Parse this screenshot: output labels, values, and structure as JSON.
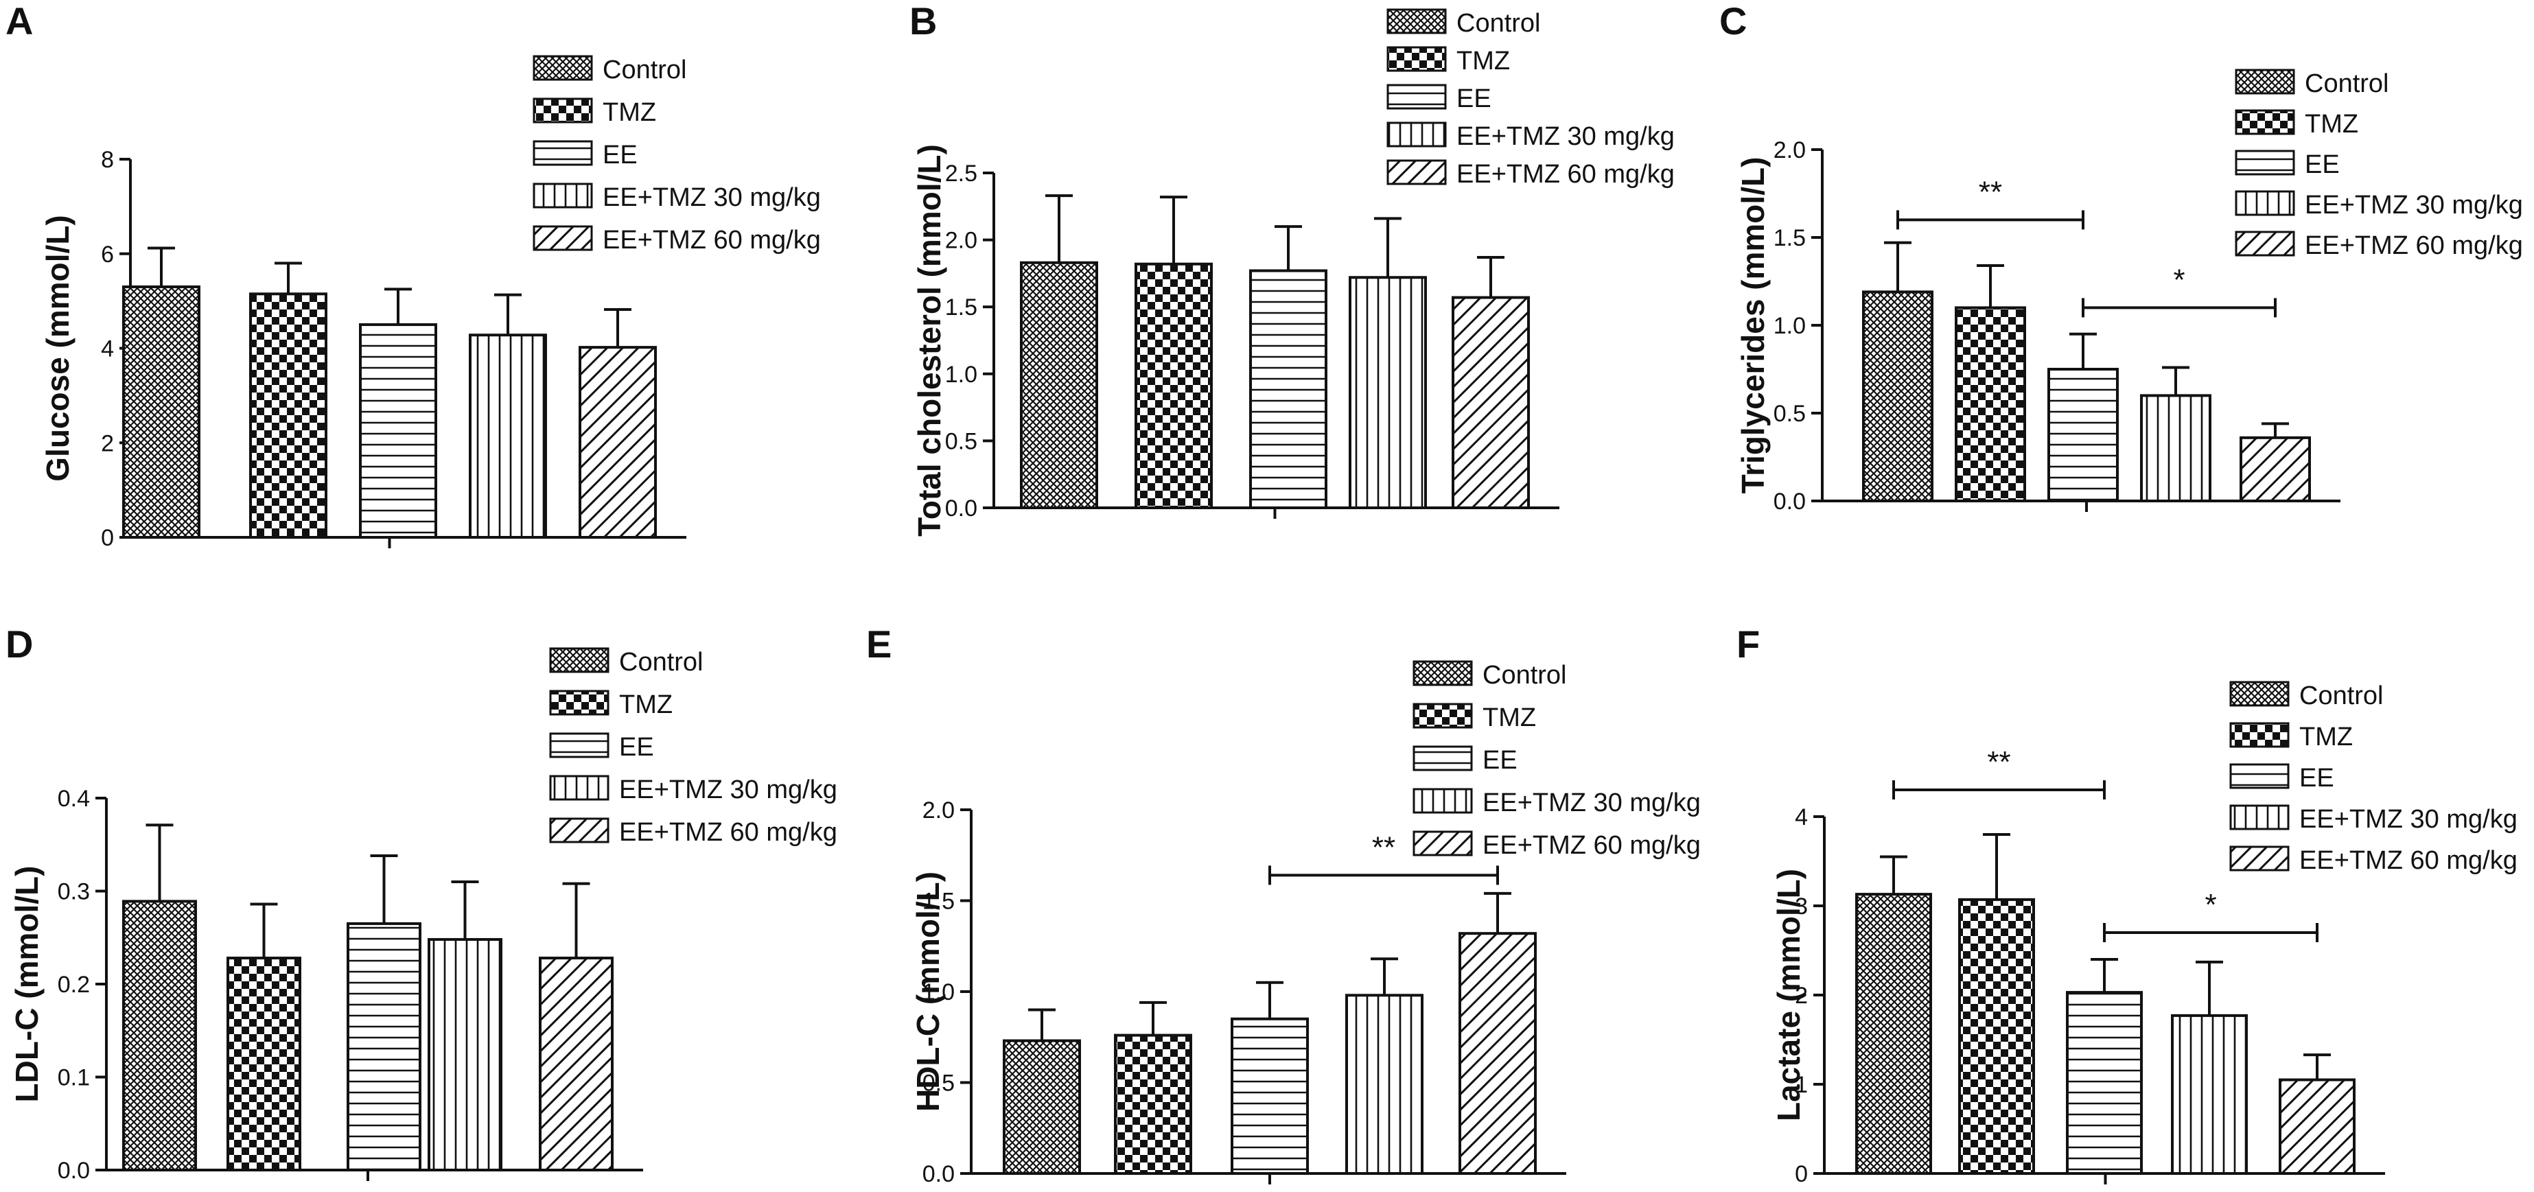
{
  "colors": {
    "ink": "#111111",
    "background": "#ffffff"
  },
  "legend": {
    "entries": [
      "Control",
      "TMZ",
      "EE",
      "EE+TMZ 30 mg/kg",
      "EE+TMZ 60 mg/kg"
    ],
    "patterns": [
      "fine-crosshatch",
      "checker",
      "horizontal-lines",
      "vertical-lines",
      "diagonal-lines"
    ]
  },
  "chart_data": [
    {
      "panel": "A",
      "type": "bar",
      "title": "",
      "xlabel": "",
      "ylabel": "Glucose (mmol/L)",
      "categories": [
        "Control",
        "TMZ",
        "EE",
        "EE+TMZ 30 mg/kg",
        "EE+TMZ 60 mg/kg"
      ],
      "values": [
        5.3,
        5.15,
        4.5,
        4.28,
        4.02
      ],
      "errors": [
        0.82,
        0.65,
        0.75,
        0.85,
        0.8
      ],
      "ylim": [
        0,
        8
      ],
      "ticks": [
        0,
        2,
        4,
        6,
        8
      ],
      "tick_labels": [
        "0",
        "2",
        "4",
        "6",
        "8"
      ],
      "significance": [],
      "legend_position": "top-right"
    },
    {
      "panel": "B",
      "type": "bar",
      "title": "",
      "xlabel": "",
      "ylabel": "Total cholesterol (mmol/L)",
      "categories": [
        "Control",
        "TMZ",
        "EE",
        "EE+TMZ 30 mg/kg",
        "EE+TMZ 60 mg/kg"
      ],
      "values": [
        1.83,
        1.82,
        1.77,
        1.72,
        1.57
      ],
      "errors": [
        0.5,
        0.5,
        0.33,
        0.44,
        0.3
      ],
      "ylim": [
        0,
        2.5
      ],
      "ticks": [
        0,
        0.5,
        1,
        1.5,
        2,
        2.5
      ],
      "tick_labels": [
        "0.0",
        "0.5",
        "1.0",
        "1.5",
        "2.0",
        "2.5"
      ],
      "significance": [],
      "legend_position": "top-right"
    },
    {
      "panel": "C",
      "type": "bar",
      "title": "",
      "xlabel": "",
      "ylabel": "Triglycerides (mmol/L)",
      "categories": [
        "Control",
        "TMZ",
        "EE",
        "EE+TMZ 30 mg/kg",
        "EE+TMZ 60 mg/kg"
      ],
      "values": [
        1.19,
        1.1,
        0.75,
        0.6,
        0.36
      ],
      "errors": [
        0.28,
        0.24,
        0.2,
        0.16,
        0.08
      ],
      "ylim": [
        0,
        2
      ],
      "ticks": [
        0,
        0.5,
        1,
        1.5,
        2
      ],
      "tick_labels": [
        "0.0",
        "0.5",
        "1.0",
        "1.5",
        "2.0"
      ],
      "significance": [
        {
          "from": 0,
          "to": 2,
          "label": "**",
          "y": 1.6
        },
        {
          "from": 2,
          "to": 4,
          "label": "*",
          "y": 1.1
        }
      ],
      "legend_position": "top-right"
    },
    {
      "panel": "D",
      "type": "bar",
      "title": "",
      "xlabel": "",
      "ylabel": "LDL-C (mmol/L)",
      "categories": [
        "Control",
        "TMZ",
        "EE",
        "EE+TMZ 30 mg/kg",
        "EE+TMZ 60 mg/kg"
      ],
      "values": [
        0.289,
        0.228,
        0.265,
        0.248,
        0.228
      ],
      "errors": [
        0.082,
        0.058,
        0.073,
        0.062,
        0.08
      ],
      "ylim": [
        0,
        0.4
      ],
      "ticks": [
        0,
        0.1,
        0.2,
        0.3,
        0.4
      ],
      "tick_labels": [
        "0.0",
        "0.1",
        "0.2",
        "0.3",
        "0.4"
      ],
      "significance": [],
      "legend_position": "top-right"
    },
    {
      "panel": "E",
      "type": "bar",
      "title": "",
      "xlabel": "",
      "ylabel": "HDL-C (mmol/L)",
      "categories": [
        "Control",
        "TMZ",
        "EE",
        "EE+TMZ 30 mg/kg",
        "EE+TMZ 60 mg/kg"
      ],
      "values": [
        0.73,
        0.76,
        0.85,
        0.98,
        1.32
      ],
      "errors": [
        0.17,
        0.18,
        0.2,
        0.2,
        0.22
      ],
      "ylim": [
        0,
        2
      ],
      "ticks": [
        0,
        0.5,
        1,
        1.5,
        2
      ],
      "tick_labels": [
        "0.0",
        "0.5",
        "1.0",
        "1.5",
        "2.0"
      ],
      "significance": [
        {
          "from": 2,
          "to": 4,
          "label": "**",
          "y": 1.64
        }
      ],
      "legend_position": "top-right"
    },
    {
      "panel": "F",
      "type": "bar",
      "title": "",
      "xlabel": "",
      "ylabel": "Lactate (mmol/L)",
      "categories": [
        "Control",
        "TMZ",
        "EE",
        "EE+TMZ 30 mg/kg",
        "EE+TMZ 60 mg/kg"
      ],
      "values": [
        3.13,
        3.07,
        2.03,
        1.77,
        1.05
      ],
      "errors": [
        0.42,
        0.73,
        0.37,
        0.6,
        0.28
      ],
      "ylim": [
        0,
        4
      ],
      "ticks": [
        0,
        1,
        2,
        3,
        4
      ],
      "tick_labels": [
        "0",
        "1",
        "2",
        "3",
        "4"
      ],
      "significance": [
        {
          "from": 0,
          "to": 2,
          "label": "**",
          "y": 4.3
        },
        {
          "from": 2,
          "to": 4,
          "label": "*",
          "y": 2.7
        }
      ],
      "legend_position": "top-right"
    }
  ]
}
